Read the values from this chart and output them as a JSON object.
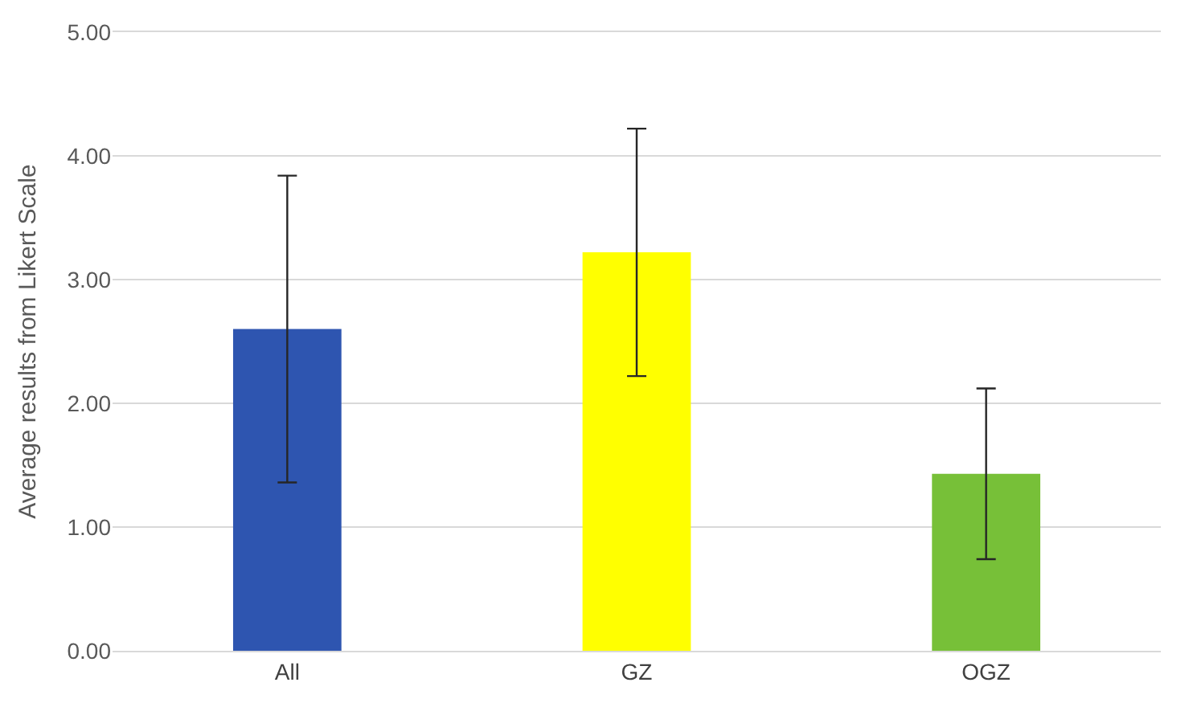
{
  "chart_data": {
    "type": "bar",
    "ylabel": "Average results from Likert Scale",
    "categories": [
      "All",
      "GZ",
      "OGZ"
    ],
    "values": [
      2.6,
      3.22,
      1.43
    ],
    "colors": [
      "#2e55b0",
      "#ffff00",
      "#77c038"
    ],
    "errors": [
      1.24,
      1.0,
      0.69
    ],
    "ylim": [
      0,
      5
    ],
    "yticks": [
      {
        "value": 0,
        "label": "0.00"
      },
      {
        "value": 1,
        "label": "1.00"
      },
      {
        "value": 2,
        "label": "2.00"
      },
      {
        "value": 3,
        "label": "3.00"
      },
      {
        "value": 4,
        "label": "4.00"
      },
      {
        "value": 5,
        "label": "5.00"
      }
    ],
    "grid": "y"
  }
}
